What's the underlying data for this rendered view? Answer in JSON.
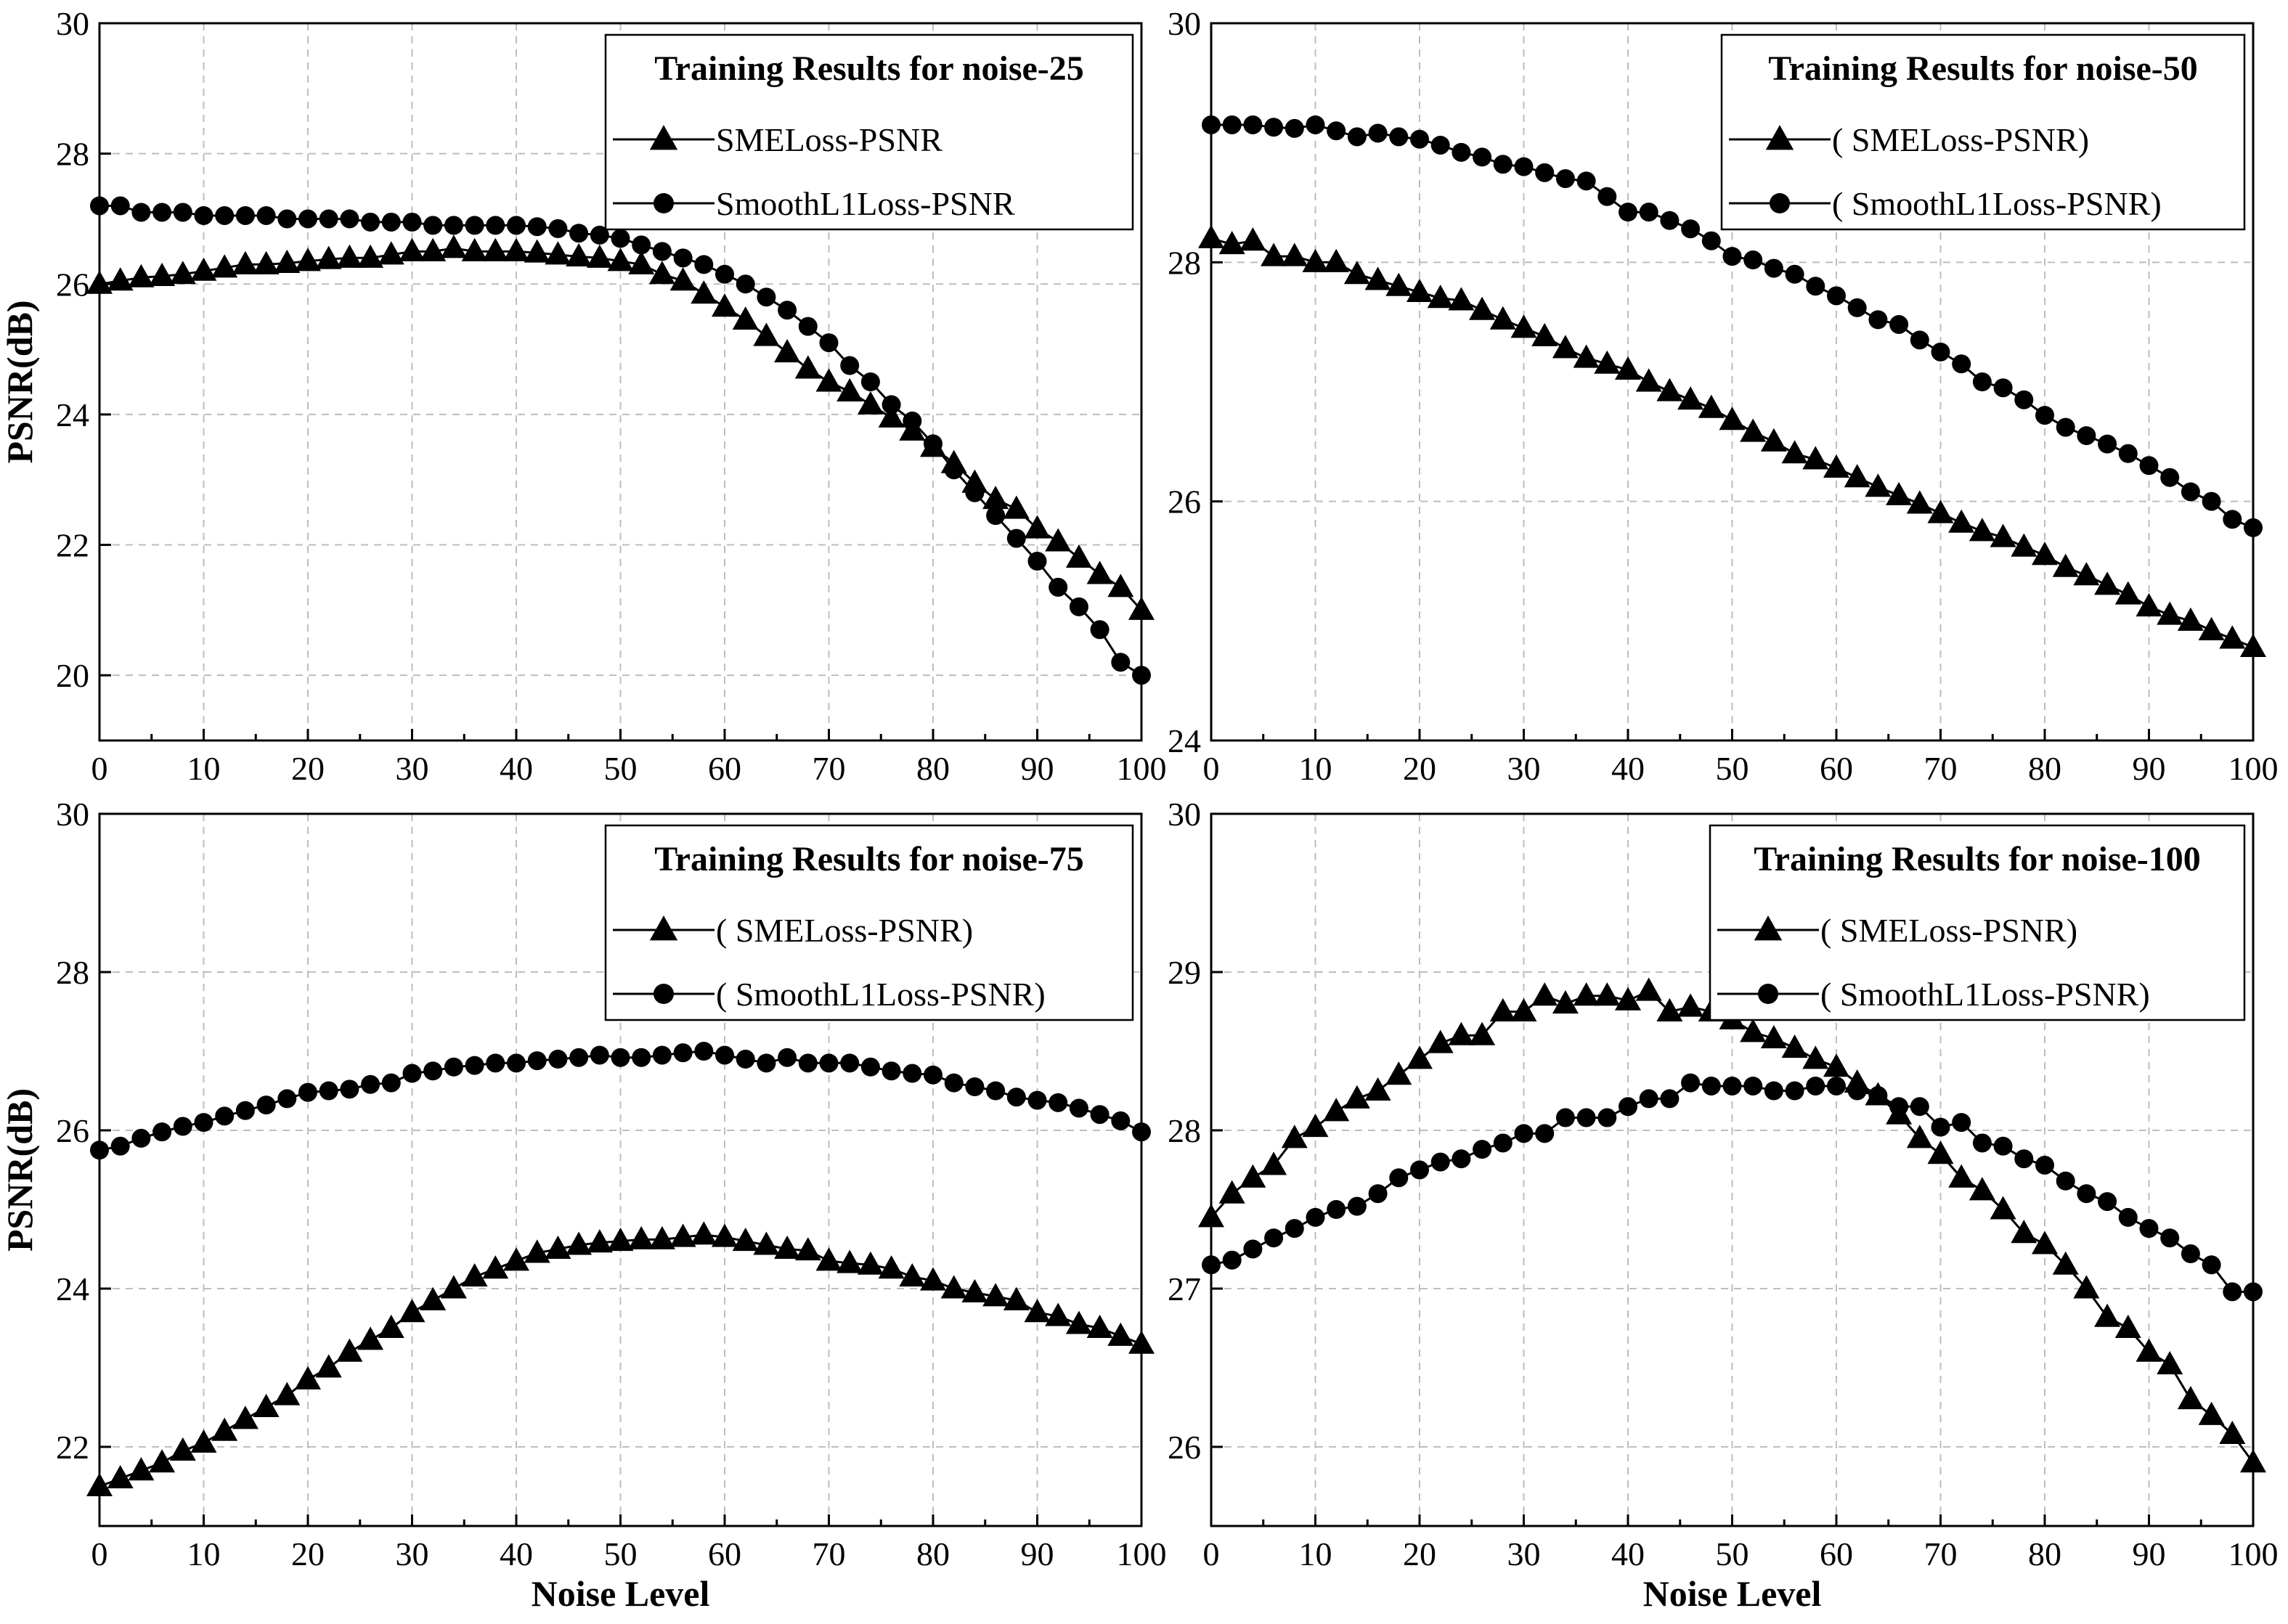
{
  "chart_data": [
    {
      "type": "line",
      "title": "Training Results for noise-25",
      "xlabel": "",
      "ylabel": "PSNR(dB)",
      "xlim": [
        0,
        100
      ],
      "ylim": [
        19,
        30
      ],
      "xticks": [
        "0",
        "10",
        "20",
        "30",
        "40",
        "50",
        "60",
        "70",
        "80",
        "90",
        "100"
      ],
      "yticks": [
        "20",
        "22",
        "24",
        "26",
        "28",
        "30"
      ],
      "grid": true,
      "legend_position": "top-right",
      "x": [
        0,
        2,
        4,
        6,
        8,
        10,
        12,
        14,
        16,
        18,
        20,
        22,
        24,
        26,
        28,
        30,
        32,
        34,
        36,
        38,
        40,
        42,
        44,
        46,
        48,
        50,
        52,
        54,
        56,
        58,
        60,
        62,
        64,
        66,
        68,
        70,
        72,
        74,
        76,
        78,
        80,
        82,
        84,
        86,
        88,
        90,
        92,
        94,
        96,
        98,
        100
      ],
      "series": [
        {
          "name": "SMELoss-PSNR",
          "marker": "triangle",
          "values": [
            26.0,
            26.05,
            26.1,
            26.12,
            26.15,
            26.2,
            26.25,
            26.3,
            26.3,
            26.32,
            26.35,
            26.38,
            26.4,
            26.4,
            26.45,
            26.5,
            26.5,
            26.55,
            26.5,
            26.5,
            26.5,
            26.48,
            26.45,
            26.42,
            26.4,
            26.35,
            26.3,
            26.15,
            26.05,
            25.85,
            25.65,
            25.45,
            25.2,
            24.95,
            24.7,
            24.5,
            24.35,
            24.15,
            23.95,
            23.75,
            23.5,
            23.25,
            22.95,
            22.7,
            22.55,
            22.25,
            22.05,
            21.8,
            21.55,
            21.35,
            21.0
          ]
        },
        {
          "name": "SmoothL1Loss-PSNR",
          "marker": "circle",
          "values": [
            27.2,
            27.2,
            27.1,
            27.1,
            27.1,
            27.05,
            27.05,
            27.05,
            27.05,
            27.0,
            27.0,
            27.0,
            27.0,
            26.95,
            26.95,
            26.95,
            26.9,
            26.9,
            26.9,
            26.9,
            26.9,
            26.88,
            26.85,
            26.78,
            26.75,
            26.7,
            26.6,
            26.5,
            26.4,
            26.3,
            26.15,
            26.0,
            25.8,
            25.6,
            25.35,
            25.1,
            24.75,
            24.5,
            24.15,
            23.9,
            23.55,
            23.15,
            22.8,
            22.45,
            22.1,
            21.75,
            21.35,
            21.05,
            20.7,
            20.2,
            20.0
          ]
        }
      ]
    },
    {
      "type": "line",
      "title": "Training Results for noise-50",
      "xlabel": "",
      "ylabel": "",
      "xlim": [
        0,
        100
      ],
      "ylim": [
        24,
        30
      ],
      "xticks": [
        "0",
        "10",
        "20",
        "30",
        "40",
        "50",
        "60",
        "70",
        "80",
        "90",
        "100"
      ],
      "yticks": [
        "24",
        "26",
        "28",
        "30"
      ],
      "grid": true,
      "legend_position": "top-right",
      "x": [
        0,
        2,
        4,
        6,
        8,
        10,
        12,
        14,
        16,
        18,
        20,
        22,
        24,
        26,
        28,
        30,
        32,
        34,
        36,
        38,
        40,
        42,
        44,
        46,
        48,
        50,
        52,
        54,
        56,
        58,
        60,
        62,
        64,
        66,
        68,
        70,
        72,
        74,
        76,
        78,
        80,
        82,
        84,
        86,
        88,
        90,
        92,
        94,
        96,
        98,
        100
      ],
      "series": [
        {
          "name": "( SMELoss-PSNR)",
          "marker": "triangle",
          "values": [
            28.2,
            28.15,
            28.18,
            28.05,
            28.05,
            28.0,
            28.0,
            27.9,
            27.85,
            27.8,
            27.75,
            27.7,
            27.68,
            27.6,
            27.52,
            27.45,
            27.38,
            27.28,
            27.2,
            27.15,
            27.1,
            27.0,
            26.92,
            26.85,
            26.78,
            26.68,
            26.58,
            26.5,
            26.4,
            26.35,
            26.28,
            26.2,
            26.12,
            26.05,
            25.98,
            25.9,
            25.82,
            25.75,
            25.7,
            25.62,
            25.55,
            25.45,
            25.38,
            25.3,
            25.22,
            25.12,
            25.05,
            25.0,
            24.92,
            24.85,
            24.78
          ]
        },
        {
          "name": "( SmoothL1Loss-PSNR)",
          "marker": "circle",
          "values": [
            29.15,
            29.15,
            29.15,
            29.13,
            29.12,
            29.15,
            29.1,
            29.05,
            29.08,
            29.05,
            29.03,
            28.98,
            28.92,
            28.88,
            28.82,
            28.8,
            28.75,
            28.7,
            28.68,
            28.55,
            28.42,
            28.42,
            28.35,
            28.28,
            28.18,
            28.05,
            28.02,
            27.95,
            27.9,
            27.8,
            27.72,
            27.62,
            27.52,
            27.48,
            27.35,
            27.25,
            27.15,
            27.0,
            26.95,
            26.85,
            26.72,
            26.62,
            26.55,
            26.48,
            26.4,
            26.3,
            26.2,
            26.08,
            26.0,
            25.85,
            25.78
          ]
        }
      ]
    },
    {
      "type": "line",
      "title": "Training Results for noise-75",
      "xlabel": "Noise Level",
      "ylabel": "PSNR(dB)",
      "xlim": [
        0,
        100
      ],
      "ylim": [
        21,
        30
      ],
      "xticks": [
        "0",
        "10",
        "20",
        "30",
        "40",
        "50",
        "60",
        "70",
        "80",
        "90",
        "100"
      ],
      "yticks": [
        "22",
        "24",
        "26",
        "28",
        "30"
      ],
      "grid": true,
      "legend_position": "top-right",
      "x": [
        0,
        2,
        4,
        6,
        8,
        10,
        12,
        14,
        16,
        18,
        20,
        22,
        24,
        26,
        28,
        30,
        32,
        34,
        36,
        38,
        40,
        42,
        44,
        46,
        48,
        50,
        52,
        54,
        56,
        58,
        60,
        62,
        64,
        66,
        68,
        70,
        72,
        74,
        76,
        78,
        80,
        82,
        84,
        86,
        88,
        90,
        92,
        94,
        96,
        98,
        100
      ],
      "series": [
        {
          "name": "( SMELoss-PSNR)",
          "marker": "triangle",
          "values": [
            21.5,
            21.6,
            21.7,
            21.8,
            21.95,
            22.05,
            22.2,
            22.35,
            22.5,
            22.65,
            22.85,
            23.0,
            23.2,
            23.35,
            23.5,
            23.7,
            23.85,
            24.0,
            24.15,
            24.25,
            24.35,
            24.45,
            24.5,
            24.55,
            24.58,
            24.6,
            24.62,
            24.62,
            24.65,
            24.68,
            24.65,
            24.6,
            24.55,
            24.5,
            24.48,
            24.35,
            24.32,
            24.3,
            24.25,
            24.15,
            24.1,
            24.0,
            23.95,
            23.9,
            23.85,
            23.7,
            23.65,
            23.55,
            23.5,
            23.4,
            23.3
          ]
        },
        {
          "name": "( SmoothL1Loss-PSNR)",
          "marker": "circle",
          "values": [
            25.75,
            25.8,
            25.9,
            25.98,
            26.05,
            26.1,
            26.18,
            26.25,
            26.32,
            26.4,
            26.48,
            26.5,
            26.52,
            26.58,
            26.6,
            26.72,
            26.75,
            26.8,
            26.82,
            26.85,
            26.85,
            26.88,
            26.9,
            26.92,
            26.95,
            26.92,
            26.92,
            26.95,
            26.98,
            27.0,
            26.95,
            26.9,
            26.85,
            26.92,
            26.85,
            26.85,
            26.85,
            26.8,
            26.75,
            26.72,
            26.7,
            26.6,
            26.55,
            26.5,
            26.42,
            26.38,
            26.35,
            26.28,
            26.2,
            26.12,
            25.98
          ]
        }
      ]
    },
    {
      "type": "line",
      "title": "Training Results for noise-100",
      "xlabel": "Noise Level",
      "ylabel": "",
      "xlim": [
        0,
        100
      ],
      "ylim": [
        25.5,
        30
      ],
      "xticks": [
        "0",
        "10",
        "20",
        "30",
        "40",
        "50",
        "60",
        "70",
        "80",
        "90",
        "100"
      ],
      "yticks": [
        "26",
        "27",
        "28",
        "29",
        "30"
      ],
      "grid": true,
      "legend_position": "top-right",
      "x": [
        0,
        2,
        4,
        6,
        8,
        10,
        12,
        14,
        16,
        18,
        20,
        22,
        24,
        26,
        28,
        30,
        32,
        34,
        36,
        38,
        40,
        42,
        44,
        46,
        48,
        50,
        52,
        54,
        56,
        58,
        60,
        62,
        64,
        66,
        68,
        70,
        72,
        74,
        76,
        78,
        80,
        82,
        84,
        86,
        88,
        90,
        92,
        94,
        96,
        98,
        100
      ],
      "series": [
        {
          "name": "( SMELoss-PSNR)",
          "marker": "triangle",
          "values": [
            27.45,
            27.6,
            27.7,
            27.78,
            27.95,
            28.02,
            28.12,
            28.2,
            28.25,
            28.35,
            28.45,
            28.55,
            28.6,
            28.6,
            28.75,
            28.75,
            28.85,
            28.8,
            28.85,
            28.85,
            28.82,
            28.88,
            28.75,
            28.78,
            28.75,
            28.7,
            28.62,
            28.58,
            28.52,
            28.45,
            28.4,
            28.3,
            28.22,
            28.1,
            27.95,
            27.85,
            27.7,
            27.62,
            27.5,
            27.35,
            27.28,
            27.15,
            27.0,
            26.82,
            26.75,
            26.6,
            26.52,
            26.3,
            26.2,
            26.08,
            25.9
          ]
        },
        {
          "name": "( SmoothL1Loss-PSNR)",
          "marker": "circle",
          "values": [
            27.15,
            27.18,
            27.25,
            27.32,
            27.38,
            27.45,
            27.5,
            27.52,
            27.6,
            27.7,
            27.75,
            27.8,
            27.82,
            27.88,
            27.92,
            27.98,
            27.98,
            28.08,
            28.08,
            28.08,
            28.15,
            28.2,
            28.2,
            28.3,
            28.28,
            28.28,
            28.28,
            28.25,
            28.25,
            28.28,
            28.28,
            28.25,
            28.22,
            28.15,
            28.15,
            28.02,
            28.05,
            27.92,
            27.9,
            27.82,
            27.78,
            27.68,
            27.6,
            27.55,
            27.45,
            27.38,
            27.32,
            27.22,
            27.15,
            26.98,
            26.98
          ]
        }
      ]
    }
  ]
}
